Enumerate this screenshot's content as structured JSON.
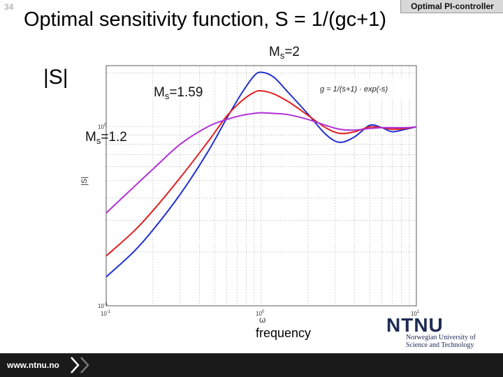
{
  "slide": {
    "number": "34",
    "title": "Optimal sensitivity function, S = 1/(gc+1)",
    "tag": "Optimal PI-controller",
    "ylabel_big": "|S|",
    "xlabel_big": "frequency"
  },
  "annotations": [
    {
      "base": "M",
      "sub": "s",
      "text": "=2"
    },
    {
      "base": "M",
      "sub": "s",
      "text": "=1.59"
    },
    {
      "base": "M",
      "sub": "s",
      "text": "=1.2"
    }
  ],
  "footer": {
    "url": "www.ntnu.no"
  },
  "logo": {
    "mark": "NTNU",
    "line1": "Norwegian University of",
    "line2": "Science and Technology"
  },
  "colors": {
    "ms2": "#1f2fd0",
    "ms159": "#e02020",
    "ms12": "#b030d8",
    "grid": "#b8b8b8",
    "footer": "#1a1a1a"
  },
  "chart_data": {
    "type": "line",
    "x_scale": "log",
    "y_scale": "log",
    "xlim": [
      0.1,
      10
    ],
    "ylim": [
      0.1,
      2.2
    ],
    "xticks": [
      "10^-1",
      "10^0",
      "10^1"
    ],
    "yticks": [
      "10^-1",
      "10^0"
    ],
    "xlabel": "ω",
    "ylabel": "|S|",
    "inset_formula": "g = 1/(s+1) · exp(-s)",
    "series": [
      {
        "name": "Ms=2",
        "x": [
          0.1,
          0.15,
          0.2,
          0.3,
          0.45,
          0.6,
          0.75,
          0.9,
          1.0,
          1.2,
          1.5,
          2.0,
          2.6,
          3.2,
          4.0,
          5.0,
          6.0,
          7.0,
          8.5,
          10
        ],
        "y": [
          0.145,
          0.2,
          0.265,
          0.42,
          0.72,
          1.12,
          1.55,
          1.93,
          2.02,
          1.9,
          1.55,
          1.18,
          0.91,
          0.82,
          0.88,
          1.02,
          0.99,
          0.94,
          0.97,
          1.0
        ]
      },
      {
        "name": "Ms=1.59",
        "x": [
          0.1,
          0.15,
          0.2,
          0.3,
          0.45,
          0.6,
          0.75,
          0.9,
          1.0,
          1.2,
          1.5,
          2.0,
          2.6,
          3.2,
          4.0,
          5.0,
          6.0,
          7.0,
          8.5,
          10
        ],
        "y": [
          0.19,
          0.26,
          0.34,
          0.52,
          0.82,
          1.15,
          1.4,
          1.56,
          1.59,
          1.53,
          1.38,
          1.16,
          0.99,
          0.92,
          0.94,
          1.0,
          0.99,
          0.97,
          0.98,
          1.0
        ]
      },
      {
        "name": "Ms=1.2",
        "x": [
          0.1,
          0.15,
          0.2,
          0.3,
          0.45,
          0.6,
          0.75,
          0.9,
          1.0,
          1.2,
          1.5,
          2.0,
          2.6,
          3.2,
          4.0,
          5.0,
          6.0,
          7.0,
          8.5,
          10
        ],
        "y": [
          0.33,
          0.46,
          0.58,
          0.8,
          1.0,
          1.1,
          1.16,
          1.19,
          1.2,
          1.19,
          1.17,
          1.1,
          1.02,
          0.97,
          0.96,
          0.98,
          0.99,
          0.99,
          0.99,
          1.0
        ]
      }
    ]
  }
}
